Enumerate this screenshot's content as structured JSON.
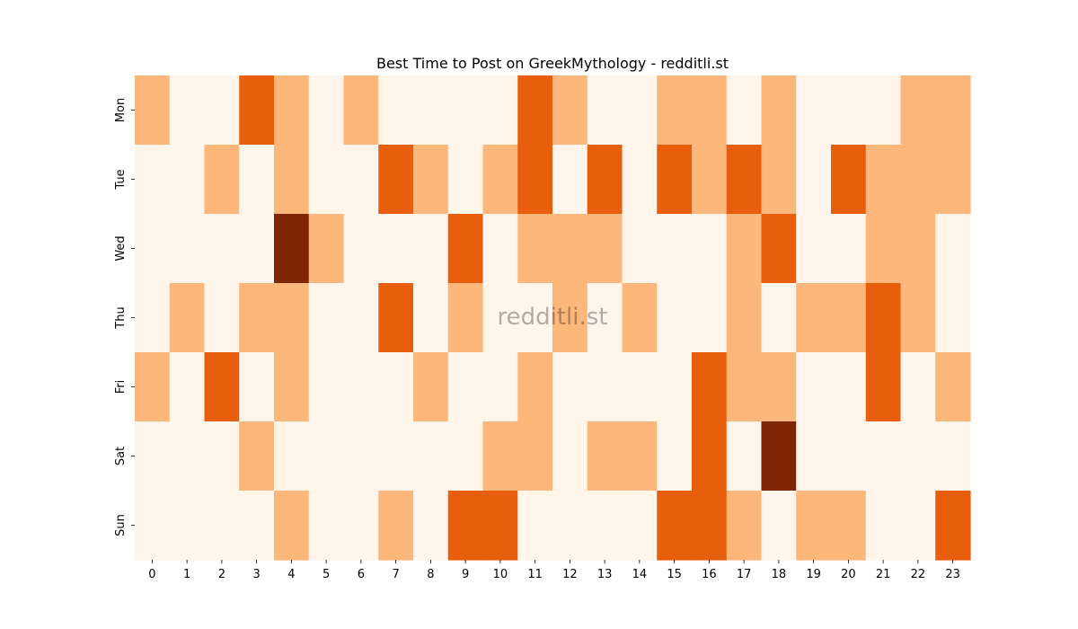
{
  "chart_data": {
    "type": "heatmap",
    "title": "Best Time to Post on GreekMythology - redditli.st",
    "watermark": "redditli.st",
    "xlabel": "",
    "ylabel": "",
    "x_categories": [
      "0",
      "1",
      "2",
      "3",
      "4",
      "5",
      "6",
      "7",
      "8",
      "9",
      "10",
      "11",
      "12",
      "13",
      "14",
      "15",
      "16",
      "17",
      "18",
      "19",
      "20",
      "21",
      "22",
      "23"
    ],
    "y_categories": [
      "Mon",
      "Tue",
      "Wed",
      "Thu",
      "Fri",
      "Sat",
      "Sun"
    ],
    "value_range": [
      0,
      3
    ],
    "colors": {
      "0": "#fff5eb",
      "1": "#fdb77a",
      "2": "#e95e0d",
      "3": "#7f2704"
    },
    "values": [
      [
        1,
        0,
        0,
        2,
        1,
        0,
        1,
        0,
        0,
        0,
        0,
        2,
        1,
        0,
        0,
        1,
        1,
        0,
        1,
        0,
        0,
        0,
        1,
        1
      ],
      [
        0,
        0,
        1,
        0,
        1,
        0,
        0,
        2,
        1,
        0,
        1,
        2,
        0,
        2,
        0,
        2,
        1,
        2,
        1,
        0,
        2,
        1,
        1,
        1
      ],
      [
        0,
        0,
        0,
        0,
        3,
        1,
        0,
        0,
        0,
        2,
        0,
        1,
        1,
        1,
        0,
        0,
        0,
        1,
        2,
        0,
        0,
        1,
        1,
        0
      ],
      [
        0,
        1,
        0,
        1,
        1,
        0,
        0,
        2,
        0,
        1,
        0,
        0,
        1,
        0,
        1,
        0,
        0,
        1,
        0,
        1,
        1,
        2,
        1,
        0
      ],
      [
        1,
        0,
        2,
        0,
        1,
        0,
        0,
        0,
        1,
        0,
        0,
        1,
        0,
        0,
        0,
        0,
        2,
        1,
        1,
        0,
        0,
        2,
        0,
        1
      ],
      [
        0,
        0,
        0,
        1,
        0,
        0,
        0,
        0,
        0,
        0,
        1,
        1,
        0,
        1,
        1,
        0,
        2,
        0,
        3,
        0,
        0,
        0,
        0,
        0
      ],
      [
        0,
        0,
        0,
        0,
        1,
        0,
        0,
        1,
        0,
        2,
        2,
        0,
        0,
        0,
        0,
        2,
        2,
        1,
        0,
        1,
        1,
        0,
        0,
        2
      ]
    ]
  }
}
